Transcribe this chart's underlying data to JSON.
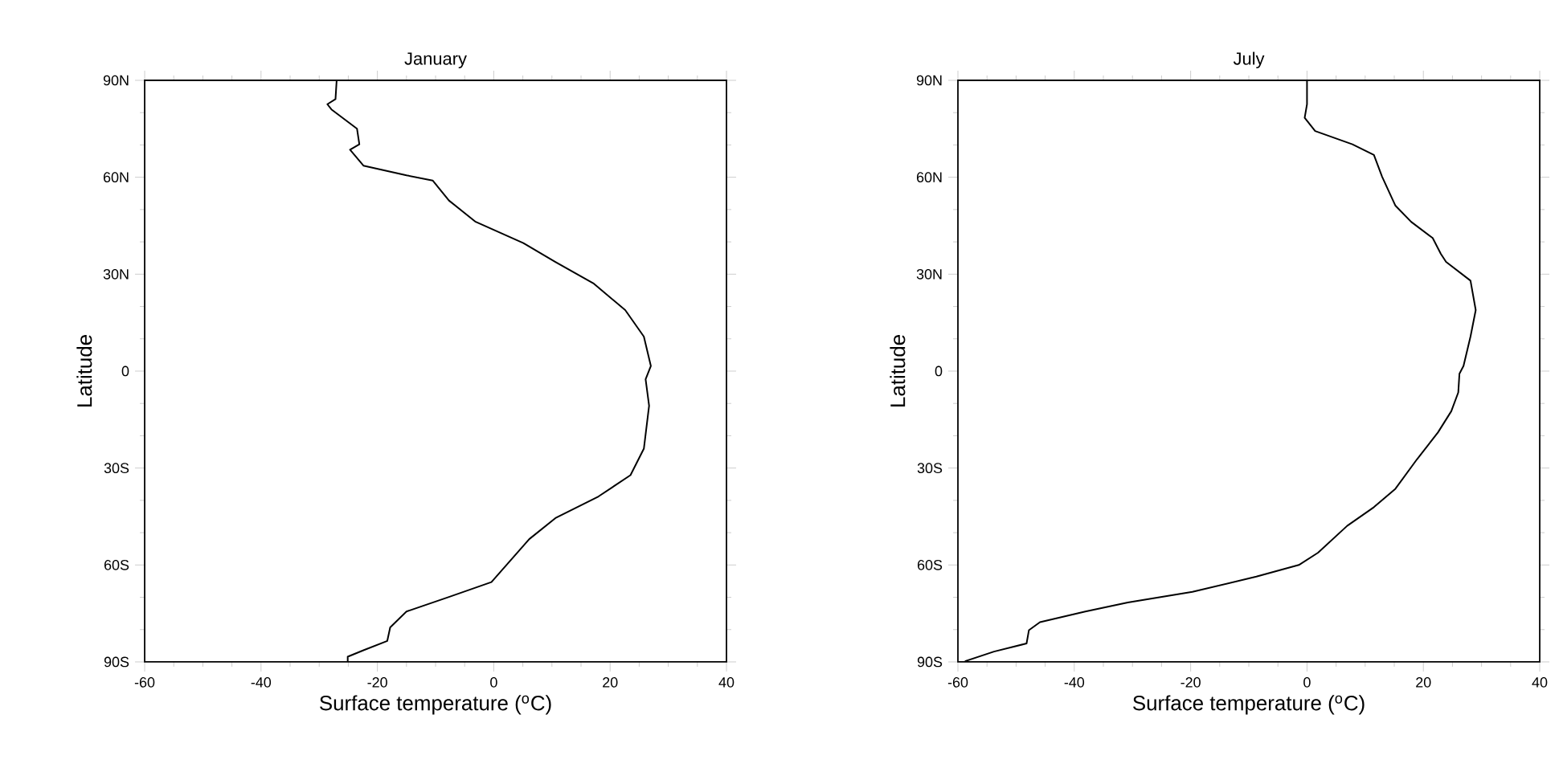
{
  "chart_data": [
    {
      "type": "line",
      "title": "January",
      "xlabel": "Surface temperature ($^{o}$C)",
      "ylabel": "Latitude",
      "xlim": [
        -60,
        40
      ],
      "xticks": [
        -60,
        -40,
        -20,
        0,
        20,
        40
      ],
      "ylim": [
        -90,
        90
      ],
      "yticks": [
        {
          "value": -90,
          "label": "90S"
        },
        {
          "value": -60,
          "label": "60S"
        },
        {
          "value": -30,
          "label": "30S"
        },
        {
          "value": 0,
          "label": "0"
        },
        {
          "value": 30,
          "label": "30N"
        },
        {
          "value": 60,
          "label": "60N"
        },
        {
          "value": 90,
          "label": "90N"
        }
      ],
      "grid": false,
      "marker": "none",
      "line_style": "solid",
      "series": [
        {
          "color": "#000000",
          "x": [
            -27,
            -27.2,
            -28.6,
            -27.9,
            -23.5,
            -23.1,
            -24.7,
            -22.4,
            -15,
            -10.5,
            -7.7,
            -3.1,
            5.1,
            10.6,
            17.1,
            22.6,
            25.8,
            27,
            26.1,
            26.7,
            25.8,
            23.5,
            18,
            10.6,
            6.1,
            -0.4,
            -7.7,
            -15,
            -17.8,
            -18.3,
            -22.4,
            -25.1,
            -25.1
          ],
          "values": [
            90,
            84.2,
            82.6,
            81,
            75,
            70.2,
            68.5,
            63.6,
            60.6,
            59,
            52.8,
            46.2,
            39.6,
            33.8,
            27.2,
            18.9,
            10.7,
            1.6,
            -2.5,
            -10.7,
            -24,
            -32.2,
            -38.8,
            -45.5,
            -52,
            -65.3,
            -69.9,
            -74.4,
            -79.3,
            -83.5,
            -86.4,
            -88.4,
            -90
          ]
        }
      ]
    },
    {
      "type": "line",
      "title": "July",
      "xlabel": "Surface temperature ($^{o}$C)",
      "ylabel": "Latitude",
      "xlim": [
        -60,
        40
      ],
      "xticks": [
        -60,
        -40,
        -20,
        0,
        20,
        40
      ],
      "ylim": [
        -90,
        90
      ],
      "yticks": [
        {
          "value": -90,
          "label": "90S"
        },
        {
          "value": -60,
          "label": "60S"
        },
        {
          "value": -30,
          "label": "30S"
        },
        {
          "value": 0,
          "label": "0"
        },
        {
          "value": 30,
          "label": "30N"
        },
        {
          "value": 60,
          "label": "60N"
        },
        {
          "value": 90,
          "label": "90N"
        }
      ],
      "grid": false,
      "marker": "none",
      "line_style": "solid",
      "series": [
        {
          "color": "#000000",
          "x": [
            0,
            0,
            -0.4,
            1.4,
            7.8,
            11.5,
            12.9,
            15.2,
            17.9,
            21.6,
            23,
            23.9,
            28.1,
            29,
            28.1,
            26.9,
            26.2,
            26,
            24.8,
            22.5,
            18.9,
            15.2,
            11.5,
            6.9,
            1.9,
            -1.4,
            -8.7,
            -19.7,
            -30.8,
            -38.1,
            -45.9,
            -47.8,
            -48.2,
            -53.8,
            -58.8
          ],
          "values": [
            90,
            82.6,
            78.4,
            74.3,
            70.2,
            66.9,
            60.2,
            51.2,
            46.2,
            41.2,
            36.3,
            33.8,
            28,
            18.9,
            10.7,
            1.6,
            -0.8,
            -6.6,
            -12.4,
            -19,
            -27.3,
            -36.4,
            -42.1,
            -47.9,
            -56.2,
            -60,
            -63.6,
            -68.3,
            -71.6,
            -74.4,
            -77.7,
            -80.2,
            -84.3,
            -86.8,
            -89.8
          ]
        }
      ]
    }
  ]
}
